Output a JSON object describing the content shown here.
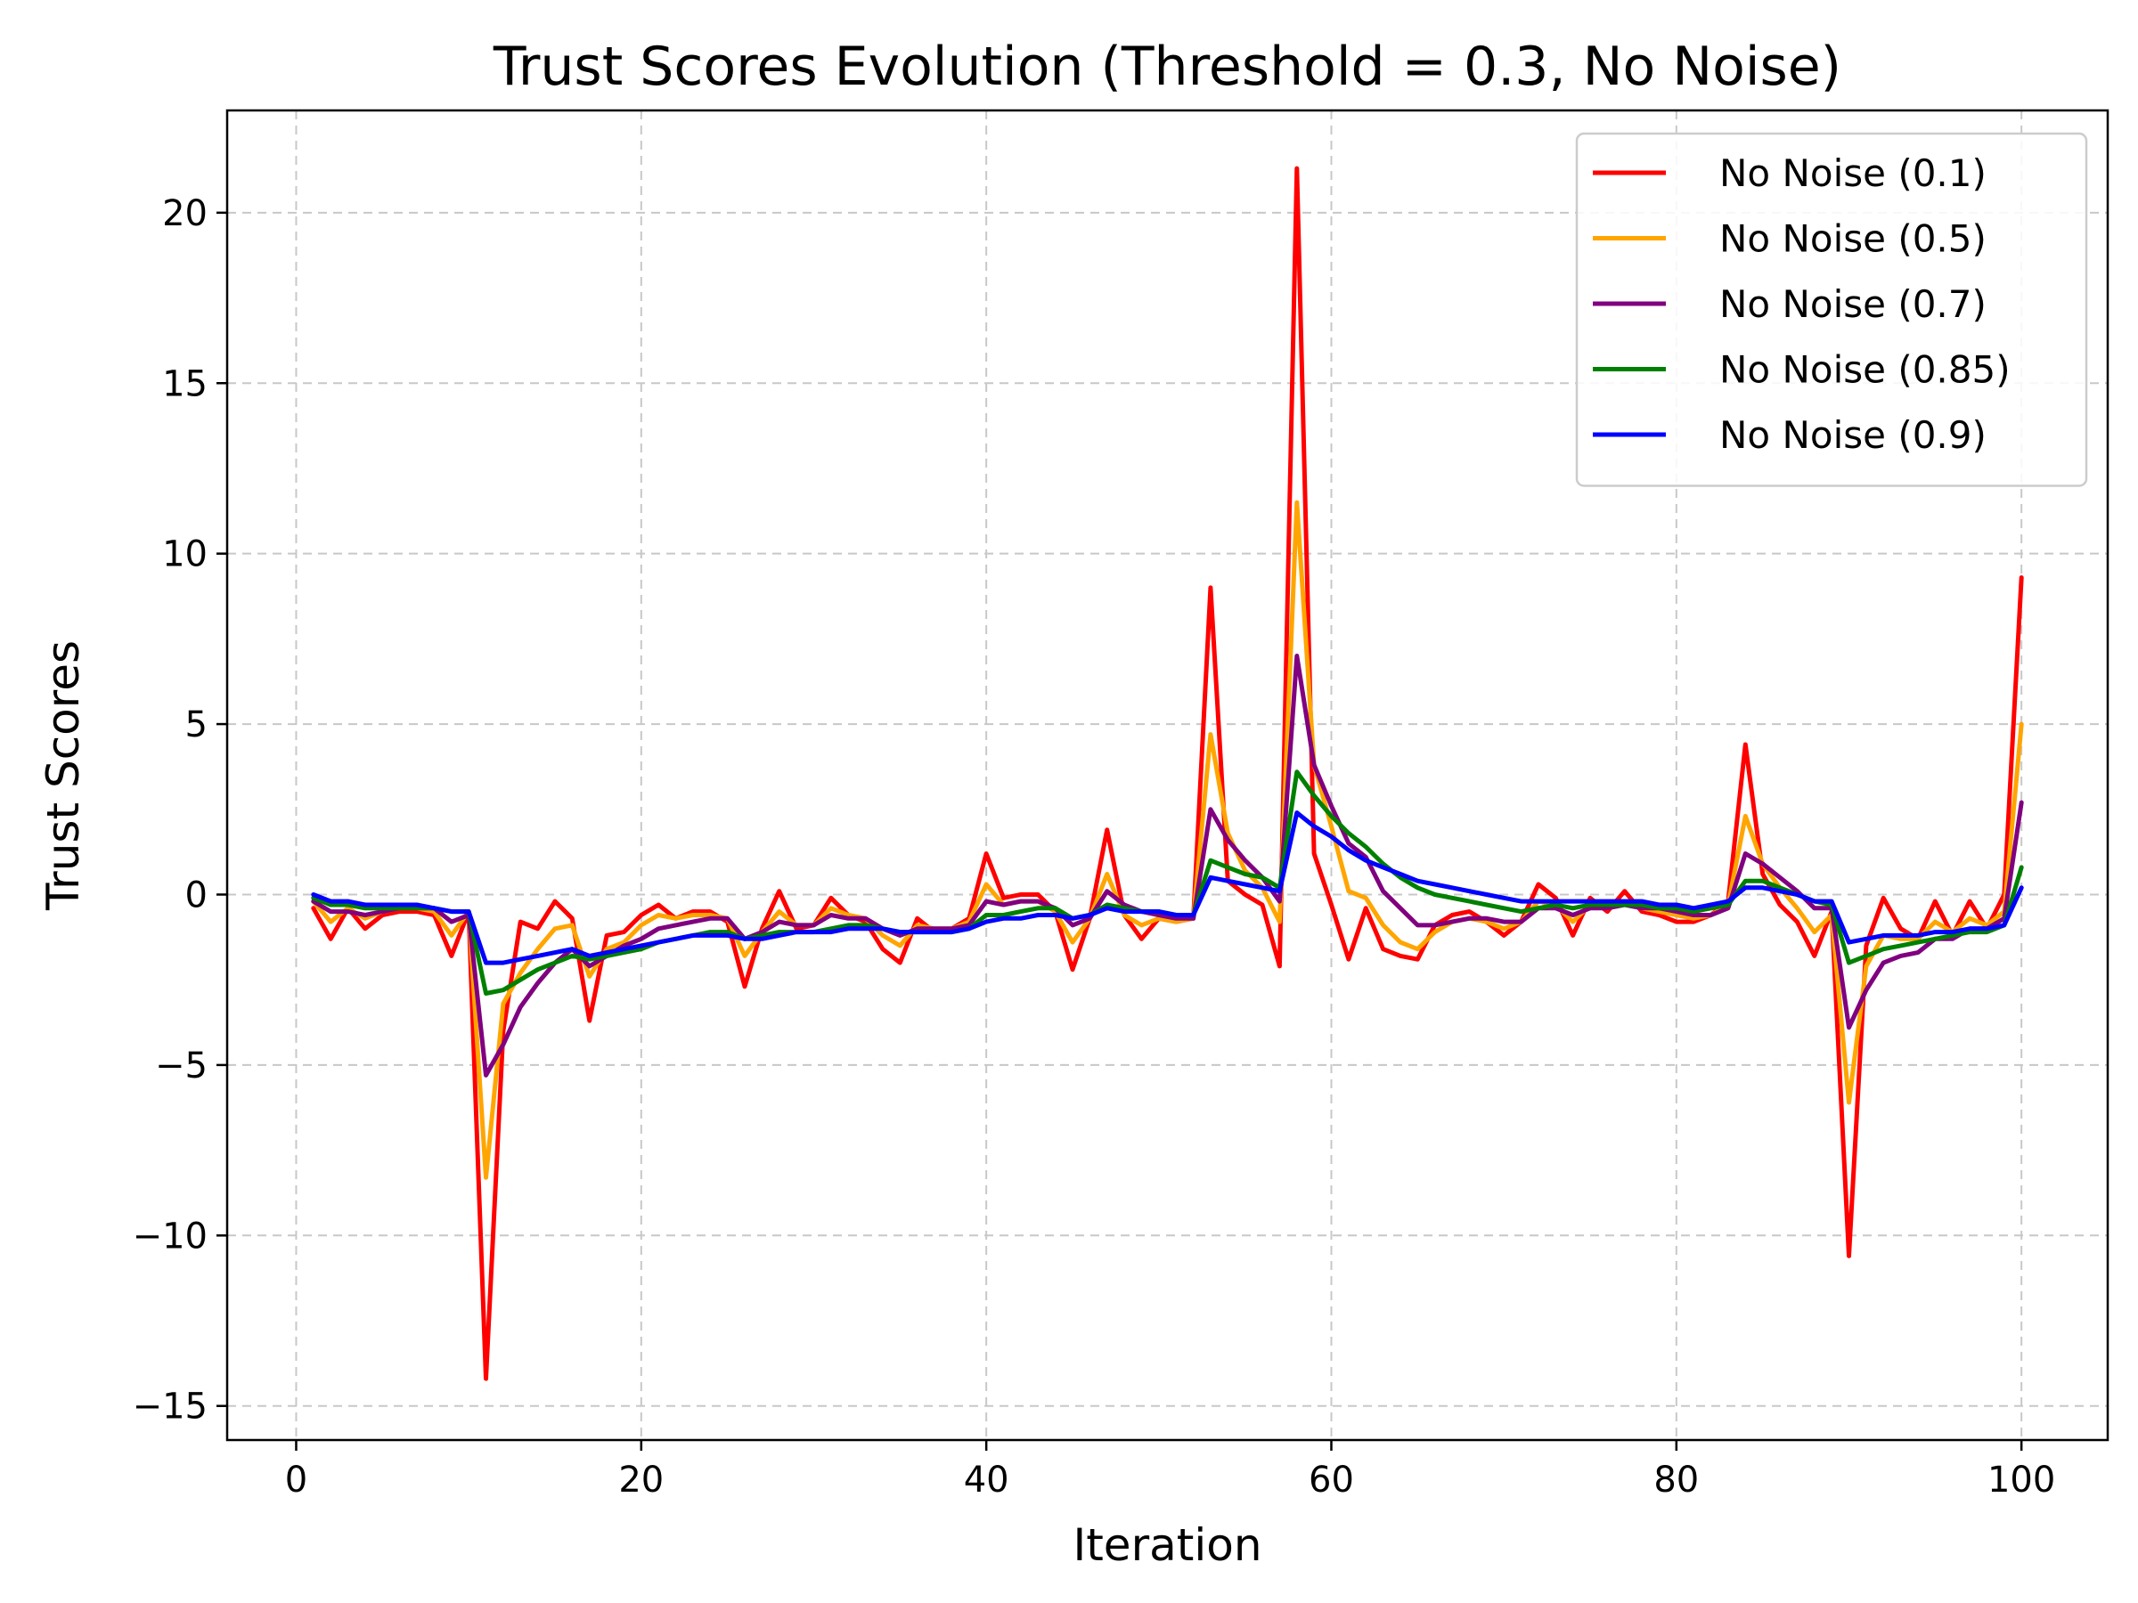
{
  "chart_data": {
    "type": "line",
    "title": "Trust Scores Evolution (Threshold = 0.3, No Noise)",
    "xlabel": "Iteration",
    "ylabel": "Trust Scores",
    "xlim": [
      -4,
      105
    ],
    "ylim": [
      -16,
      23
    ],
    "xticks": [
      0,
      20,
      40,
      60,
      80,
      100
    ],
    "yticks": [
      -15,
      -10,
      -5,
      0,
      5,
      10,
      15,
      20
    ],
    "ytick_labels": [
      "−15",
      "−10",
      "−5",
      "0",
      "5",
      "10",
      "15",
      "20"
    ],
    "grid": true,
    "legend_position": "top-right",
    "x": [
      1,
      2,
      3,
      4,
      5,
      6,
      7,
      8,
      9,
      10,
      11,
      12,
      13,
      14,
      15,
      16,
      17,
      18,
      19,
      20,
      21,
      22,
      23,
      24,
      25,
      26,
      27,
      28,
      29,
      30,
      31,
      32,
      33,
      34,
      35,
      36,
      37,
      38,
      39,
      40,
      41,
      42,
      43,
      44,
      45,
      46,
      47,
      48,
      49,
      50,
      51,
      52,
      53,
      54,
      55,
      56,
      57,
      58,
      59,
      60,
      61,
      62,
      63,
      64,
      65,
      66,
      67,
      68,
      69,
      70,
      71,
      72,
      73,
      74,
      75,
      76,
      77,
      78,
      79,
      80,
      81,
      82,
      83,
      84,
      85,
      86,
      87,
      88,
      89,
      90,
      91,
      92,
      93,
      94,
      95,
      96,
      97,
      98,
      99,
      100
    ],
    "series": [
      {
        "name": "No Noise (0.1)",
        "color": "#ff0000",
        "values": [
          -0.4,
          -1.3,
          -0.4,
          -1.0,
          -0.6,
          -0.5,
          -0.5,
          -0.6,
          -1.8,
          -0.5,
          -14.2,
          -4.0,
          -0.8,
          -1.0,
          -0.2,
          -0.7,
          -3.7,
          -1.2,
          -1.1,
          -0.6,
          -0.3,
          -0.7,
          -0.5,
          -0.5,
          -0.8,
          -2.7,
          -1.0,
          0.1,
          -1.0,
          -0.9,
          -0.1,
          -0.6,
          -0.8,
          -1.6,
          -2.0,
          -0.7,
          -1.1,
          -1.0,
          -0.7,
          1.2,
          -0.1,
          0.0,
          0.0,
          -0.5,
          -2.2,
          -0.7,
          1.9,
          -0.6,
          -1.3,
          -0.7,
          -0.8,
          -0.7,
          9.0,
          0.4,
          0.0,
          -0.3,
          -2.1,
          21.3,
          1.2,
          -0.3,
          -1.9,
          -0.4,
          -1.6,
          -1.8,
          -1.9,
          -0.9,
          -0.6,
          -0.5,
          -0.8,
          -1.2,
          -0.8,
          0.3,
          -0.1,
          -1.2,
          -0.1,
          -0.5,
          0.1,
          -0.5,
          -0.6,
          -0.8,
          -0.8,
          -0.6,
          -0.2,
          4.4,
          0.6,
          -0.3,
          -0.8,
          -1.8,
          -0.5,
          -10.6,
          -1.5,
          -0.1,
          -1.0,
          -1.3,
          -0.2,
          -1.2,
          -0.2,
          -1.0,
          0.0,
          9.3
        ]
      },
      {
        "name": "No Noise (0.5)",
        "color": "#ffa500",
        "values": [
          -0.2,
          -0.8,
          -0.4,
          -0.7,
          -0.5,
          -0.4,
          -0.4,
          -0.5,
          -1.2,
          -0.5,
          -8.3,
          -3.2,
          -2.3,
          -1.6,
          -1.0,
          -0.9,
          -2.4,
          -1.6,
          -1.4,
          -0.9,
          -0.6,
          -0.7,
          -0.6,
          -0.6,
          -0.7,
          -1.8,
          -1.1,
          -0.5,
          -0.9,
          -0.9,
          -0.4,
          -0.6,
          -0.7,
          -1.2,
          -1.5,
          -0.9,
          -1.0,
          -1.0,
          -0.8,
          0.3,
          -0.3,
          -0.2,
          -0.2,
          -0.5,
          -1.4,
          -0.7,
          0.6,
          -0.6,
          -0.9,
          -0.7,
          -0.8,
          -0.7,
          4.7,
          1.8,
          0.7,
          0.2,
          -0.8,
          11.5,
          3.8,
          2.0,
          0.1,
          -0.1,
          -0.9,
          -1.4,
          -1.6,
          -1.1,
          -0.8,
          -0.7,
          -0.8,
          -1.0,
          -0.8,
          -0.2,
          -0.3,
          -0.8,
          -0.3,
          -0.4,
          -0.2,
          -0.4,
          -0.5,
          -0.6,
          -0.7,
          -0.6,
          -0.3,
          2.3,
          0.9,
          0.2,
          -0.4,
          -1.1,
          -0.6,
          -6.1,
          -2.1,
          -1.2,
          -1.3,
          -1.3,
          -0.8,
          -1.1,
          -0.7,
          -0.9,
          -0.5,
          5.0
        ]
      },
      {
        "name": "No Noise (0.7)",
        "color": "#800080",
        "values": [
          -0.2,
          -0.5,
          -0.5,
          -0.6,
          -0.5,
          -0.4,
          -0.4,
          -0.4,
          -0.8,
          -0.6,
          -5.3,
          -4.4,
          -3.3,
          -2.6,
          -2.0,
          -1.6,
          -2.1,
          -1.8,
          -1.5,
          -1.3,
          -1.0,
          -0.9,
          -0.8,
          -0.7,
          -0.7,
          -1.3,
          -1.1,
          -0.8,
          -0.9,
          -0.9,
          -0.6,
          -0.7,
          -0.7,
          -1.0,
          -1.2,
          -1.0,
          -1.0,
          -1.0,
          -0.9,
          -0.2,
          -0.3,
          -0.2,
          -0.2,
          -0.4,
          -0.9,
          -0.7,
          0.1,
          -0.3,
          -0.5,
          -0.6,
          -0.7,
          -0.7,
          2.5,
          1.6,
          1.0,
          0.5,
          -0.2,
          7.0,
          3.8,
          2.6,
          1.5,
          1.1,
          0.1,
          -0.4,
          -0.9,
          -0.9,
          -0.8,
          -0.7,
          -0.7,
          -0.8,
          -0.8,
          -0.4,
          -0.4,
          -0.6,
          -0.4,
          -0.4,
          -0.3,
          -0.4,
          -0.4,
          -0.5,
          -0.6,
          -0.6,
          -0.4,
          1.2,
          0.9,
          0.5,
          0.1,
          -0.4,
          -0.4,
          -3.9,
          -2.8,
          -2.0,
          -1.8,
          -1.7,
          -1.3,
          -1.3,
          -1.0,
          -1.0,
          -0.7,
          2.7
        ]
      },
      {
        "name": "No Noise (0.85)",
        "color": "#008000",
        "values": [
          -0.1,
          -0.3,
          -0.3,
          -0.4,
          -0.4,
          -0.4,
          -0.4,
          -0.4,
          -0.5,
          -0.5,
          -2.9,
          -2.8,
          -2.5,
          -2.2,
          -2.0,
          -1.8,
          -1.9,
          -1.8,
          -1.7,
          -1.6,
          -1.4,
          -1.3,
          -1.2,
          -1.1,
          -1.1,
          -1.3,
          -1.2,
          -1.1,
          -1.1,
          -1.1,
          -1.0,
          -0.9,
          -0.9,
          -1.0,
          -1.1,
          -1.1,
          -1.1,
          -1.1,
          -1.0,
          -0.6,
          -0.6,
          -0.5,
          -0.4,
          -0.4,
          -0.7,
          -0.6,
          -0.3,
          -0.4,
          -0.5,
          -0.5,
          -0.6,
          -0.6,
          1.0,
          0.8,
          0.6,
          0.5,
          0.2,
          3.6,
          2.9,
          2.3,
          1.8,
          1.4,
          0.9,
          0.5,
          0.2,
          0.0,
          -0.1,
          -0.2,
          -0.3,
          -0.4,
          -0.5,
          -0.4,
          -0.3,
          -0.4,
          -0.3,
          -0.3,
          -0.3,
          -0.3,
          -0.4,
          -0.4,
          -0.5,
          -0.4,
          -0.3,
          0.4,
          0.4,
          0.2,
          0.0,
          -0.2,
          -0.3,
          -2.0,
          -1.8,
          -1.6,
          -1.5,
          -1.4,
          -1.3,
          -1.2,
          -1.1,
          -1.1,
          -0.9,
          0.8
        ]
      },
      {
        "name": "No Noise (0.9)",
        "color": "#0000ff",
        "values": [
          0.0,
          -0.2,
          -0.2,
          -0.3,
          -0.3,
          -0.3,
          -0.3,
          -0.4,
          -0.5,
          -0.5,
          -2.0,
          -2.0,
          -1.9,
          -1.8,
          -1.7,
          -1.6,
          -1.8,
          -1.7,
          -1.6,
          -1.5,
          -1.4,
          -1.3,
          -1.2,
          -1.2,
          -1.2,
          -1.3,
          -1.3,
          -1.2,
          -1.1,
          -1.1,
          -1.1,
          -1.0,
          -1.0,
          -1.0,
          -1.1,
          -1.1,
          -1.1,
          -1.1,
          -1.0,
          -0.8,
          -0.7,
          -0.7,
          -0.6,
          -0.6,
          -0.7,
          -0.6,
          -0.4,
          -0.5,
          -0.5,
          -0.5,
          -0.6,
          -0.6,
          0.5,
          0.4,
          0.3,
          0.2,
          0.1,
          2.4,
          2.0,
          1.7,
          1.3,
          1.0,
          0.8,
          0.6,
          0.4,
          0.3,
          0.2,
          0.1,
          0.0,
          -0.1,
          -0.2,
          -0.2,
          -0.2,
          -0.2,
          -0.2,
          -0.2,
          -0.2,
          -0.2,
          -0.3,
          -0.3,
          -0.4,
          -0.3,
          -0.2,
          0.2,
          0.2,
          0.1,
          0.0,
          -0.2,
          -0.2,
          -1.4,
          -1.3,
          -1.2,
          -1.2,
          -1.2,
          -1.1,
          -1.1,
          -1.0,
          -1.0,
          -0.9,
          0.2
        ]
      }
    ]
  }
}
